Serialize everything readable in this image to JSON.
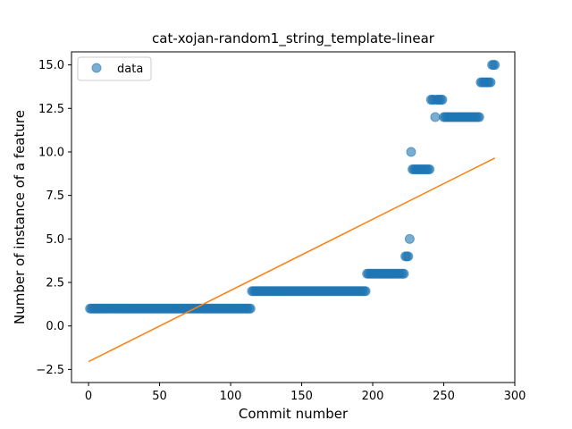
{
  "chart_data": {
    "type": "scatter",
    "title": "cat-xojan-random1_string_template-linear",
    "xlabel": "Commit number",
    "ylabel": "Number of instance of a feature",
    "xlim": [
      -12,
      300
    ],
    "ylim": [
      -3.25,
      15.75
    ],
    "xticks": [
      0,
      50,
      100,
      150,
      200,
      250,
      300
    ],
    "yticks": [
      -2.5,
      0.0,
      2.5,
      5.0,
      7.5,
      10.0,
      12.5,
      15.0
    ],
    "ytick_labels": [
      "−2.5",
      "0.0",
      "2.5",
      "5.0",
      "7.5",
      "10.0",
      "12.5",
      "15.0"
    ],
    "xtick_labels": [
      "0",
      "50",
      "100",
      "150",
      "200",
      "250",
      "300"
    ],
    "grid": false,
    "legend": {
      "placement": "top-left",
      "entries": [
        "data"
      ]
    },
    "colors": {
      "points": "#1f77b4",
      "fit": "#ff7f0e"
    },
    "point_runs": [
      {
        "x_start": 1,
        "x_end": 114,
        "y": 1
      },
      {
        "x_start": 115,
        "x_end": 195,
        "y": 2
      },
      {
        "x_start": 196,
        "x_end": 222,
        "y": 3
      },
      {
        "x_start": 223,
        "x_end": 225,
        "y": 4
      },
      {
        "x_start": 226,
        "x_end": 226,
        "y": 5
      },
      {
        "x_start": 227,
        "x_end": 227,
        "y": 10
      },
      {
        "x_start": 228,
        "x_end": 240,
        "y": 9
      },
      {
        "x_start": 241,
        "x_end": 243,
        "y": 13
      },
      {
        "x_start": 244,
        "x_end": 244,
        "y": 12
      },
      {
        "x_start": 245,
        "x_end": 249,
        "y": 13
      },
      {
        "x_start": 250,
        "x_end": 275,
        "y": 12
      },
      {
        "x_start": 276,
        "x_end": 283,
        "y": 14
      },
      {
        "x_start": 284,
        "x_end": 286,
        "y": 15
      }
    ],
    "fit_line": {
      "x": [
        0,
        286
      ],
      "y": [
        -2.05,
        9.65
      ]
    }
  }
}
